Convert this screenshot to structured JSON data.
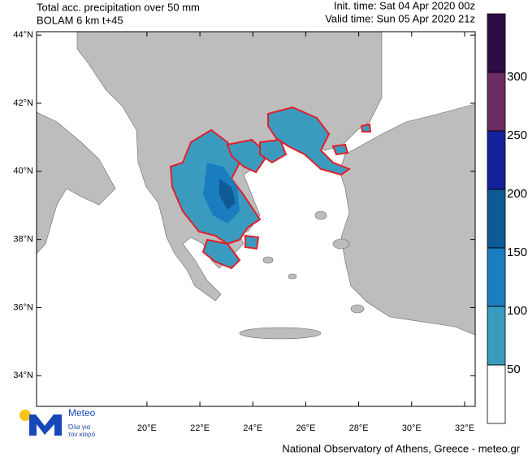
{
  "header": {
    "title": "Total acc. precipitation over 50 mm",
    "model": "BOLAM 6 km t+45",
    "init_time": "Init. time: Sat 04 Apr 2020 00z",
    "valid_time": "Valid time: Sun 05 Apr 2020 21z"
  },
  "map": {
    "xlim": [
      15.83,
      32.4
    ],
    "ylim": [
      33.1,
      44.1
    ],
    "lat_ticks": [
      {
        "value": 44,
        "label": "44°N"
      },
      {
        "value": 42,
        "label": "42°N"
      },
      {
        "value": 40,
        "label": "40°N"
      },
      {
        "value": 38,
        "label": "38°N"
      },
      {
        "value": 36,
        "label": "36°N"
      },
      {
        "value": 34,
        "label": "34°N"
      }
    ],
    "lon_ticks": [
      {
        "value": 20,
        "label": "20°E"
      },
      {
        "value": 22,
        "label": "22°E"
      },
      {
        "value": 24,
        "label": "24°E"
      },
      {
        "value": 26,
        "label": "26°E"
      },
      {
        "value": 28,
        "label": "28°E"
      },
      {
        "value": 30,
        "label": "30°E"
      },
      {
        "value": 32,
        "label": "32°E"
      }
    ]
  },
  "colorbar": {
    "levels": [
      50,
      100,
      150,
      200,
      250,
      300
    ],
    "colors": [
      "#ffffff",
      "#3a9bbf",
      "#1a7dbf",
      "#0e5a96",
      "#13229a",
      "#6a2c62",
      "#2e0b45"
    ]
  },
  "logo": {
    "name": "Meteo",
    "tagline": [
      "Όλα για",
      "τον καιρό"
    ]
  },
  "footer": "National Observatory of Athens, Greece - meteo.gr"
}
